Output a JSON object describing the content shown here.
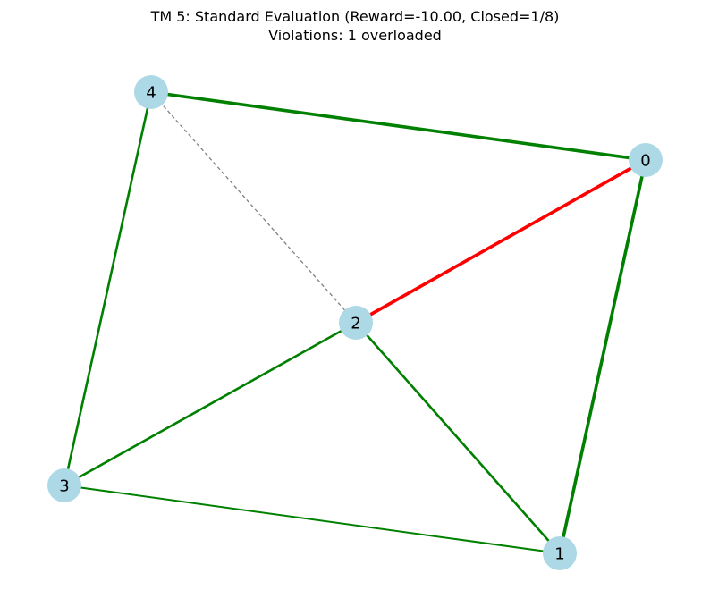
{
  "title": {
    "line1": "TM 5: Standard Evaluation (Reward=-10.00, Closed=1/8)",
    "line2": "Violations: 1 overloaded"
  },
  "colors": {
    "node_fill": "#add8e6",
    "edge_normal": "#008000",
    "edge_overloaded": "#ff0000",
    "edge_closed": "#808080",
    "background": "#ffffff"
  },
  "graph": {
    "nodes": [
      {
        "id": "0",
        "label": "0"
      },
      {
        "id": "1",
        "label": "1"
      },
      {
        "id": "2",
        "label": "2"
      },
      {
        "id": "3",
        "label": "3"
      },
      {
        "id": "4",
        "label": "4"
      }
    ],
    "edges": [
      {
        "source": "4",
        "target": "0",
        "status": "normal",
        "weight": "heavy"
      },
      {
        "source": "0",
        "target": "1",
        "status": "normal",
        "weight": "heavy"
      },
      {
        "source": "0",
        "target": "2",
        "status": "overloaded",
        "weight": "heavy"
      },
      {
        "source": "4",
        "target": "3",
        "status": "normal",
        "weight": "medium"
      },
      {
        "source": "2",
        "target": "3",
        "status": "normal",
        "weight": "medium"
      },
      {
        "source": "2",
        "target": "1",
        "status": "normal",
        "weight": "medium"
      },
      {
        "source": "3",
        "target": "1",
        "status": "normal",
        "weight": "light"
      },
      {
        "source": "4",
        "target": "2",
        "status": "closed",
        "weight": "thin"
      }
    ]
  }
}
